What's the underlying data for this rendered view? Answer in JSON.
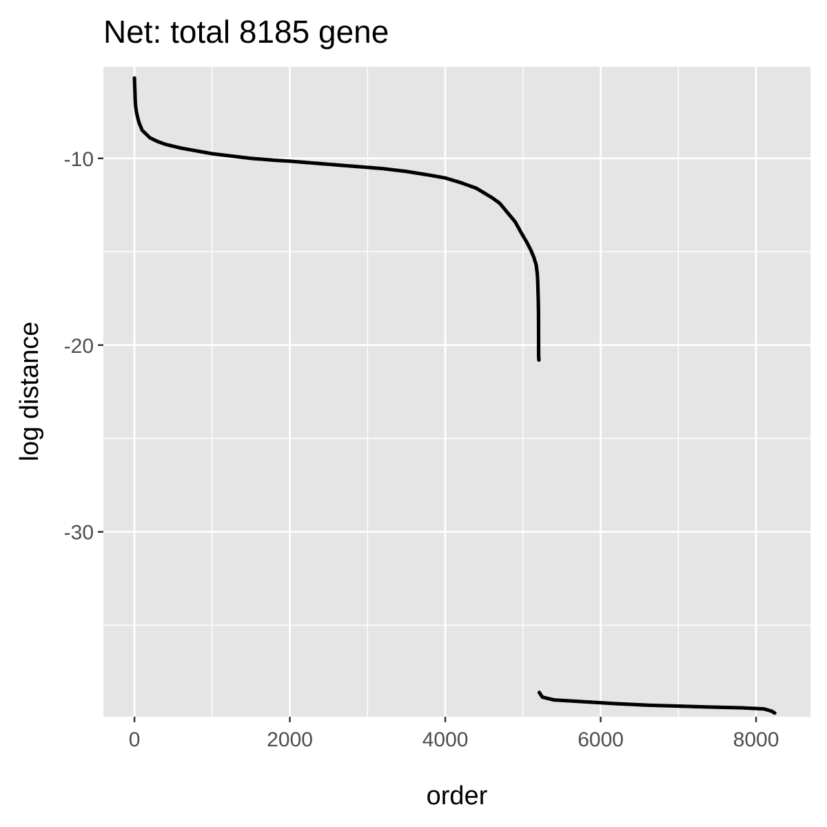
{
  "chart_data": {
    "type": "scatter",
    "title": "Net: total 8185 gene",
    "xlabel": "order",
    "ylabel": "log distance",
    "xlim": [
      -400,
      8700
    ],
    "ylim": [
      -39.9,
      -5.1
    ],
    "x_ticks": [
      0,
      2000,
      4000,
      6000,
      8000
    ],
    "x_tick_labels": [
      "0",
      "2000",
      "4000",
      "6000",
      "8000"
    ],
    "y_ticks": [
      -10,
      -20,
      -30
    ],
    "y_tick_labels": [
      "-10",
      "-20",
      "-30"
    ],
    "x_minor_gridlines": [
      1000,
      3000,
      5000,
      7000
    ],
    "y_minor_gridlines": [
      -5,
      -15,
      -25,
      -35
    ],
    "grid": true,
    "colors": {
      "panel": "#e5e5e5",
      "grid": "#ffffff",
      "points": "#000000"
    },
    "series": [
      {
        "points": [
          [
            0,
            -5.7
          ],
          [
            3,
            -6.1
          ],
          [
            6,
            -6.4
          ],
          [
            10,
            -6.9
          ],
          [
            15,
            -7.2
          ],
          [
            25,
            -7.5
          ],
          [
            40,
            -7.8
          ],
          [
            60,
            -8.1
          ],
          [
            80,
            -8.3
          ],
          [
            100,
            -8.5
          ],
          [
            150,
            -8.7
          ],
          [
            200,
            -8.9
          ],
          [
            300,
            -9.1
          ],
          [
            400,
            -9.25
          ],
          [
            600,
            -9.45
          ],
          [
            800,
            -9.6
          ],
          [
            1000,
            -9.75
          ],
          [
            1200,
            -9.85
          ],
          [
            1500,
            -10.0
          ],
          [
            1800,
            -10.1
          ],
          [
            2000,
            -10.15
          ],
          [
            2300,
            -10.25
          ],
          [
            2600,
            -10.35
          ],
          [
            2900,
            -10.45
          ],
          [
            3200,
            -10.55
          ],
          [
            3500,
            -10.7
          ],
          [
            3800,
            -10.9
          ],
          [
            4000,
            -11.05
          ],
          [
            4200,
            -11.3
          ],
          [
            4400,
            -11.6
          ],
          [
            4600,
            -12.1
          ],
          [
            4700,
            -12.4
          ],
          [
            4800,
            -12.9
          ],
          [
            4900,
            -13.4
          ],
          [
            4980,
            -14.0
          ],
          [
            5050,
            -14.5
          ],
          [
            5100,
            -14.9
          ],
          [
            5140,
            -15.3
          ],
          [
            5170,
            -15.7
          ],
          [
            5185,
            -16.2
          ],
          [
            5190,
            -16.6
          ],
          [
            5195,
            -17.3
          ],
          [
            5198,
            -17.7
          ],
          [
            5200,
            -18.3
          ],
          [
            5202,
            -20.6
          ],
          [
            5205,
            -20.8
          ],
          [
            5210,
            -38.6
          ],
          [
            5250,
            -38.85
          ],
          [
            5400,
            -39.0
          ],
          [
            5800,
            -39.1
          ],
          [
            6200,
            -39.2
          ],
          [
            6600,
            -39.28
          ],
          [
            7000,
            -39.33
          ],
          [
            7400,
            -39.38
          ],
          [
            7800,
            -39.42
          ],
          [
            8100,
            -39.48
          ],
          [
            8200,
            -39.6
          ],
          [
            8240,
            -39.7
          ]
        ]
      }
    ]
  }
}
